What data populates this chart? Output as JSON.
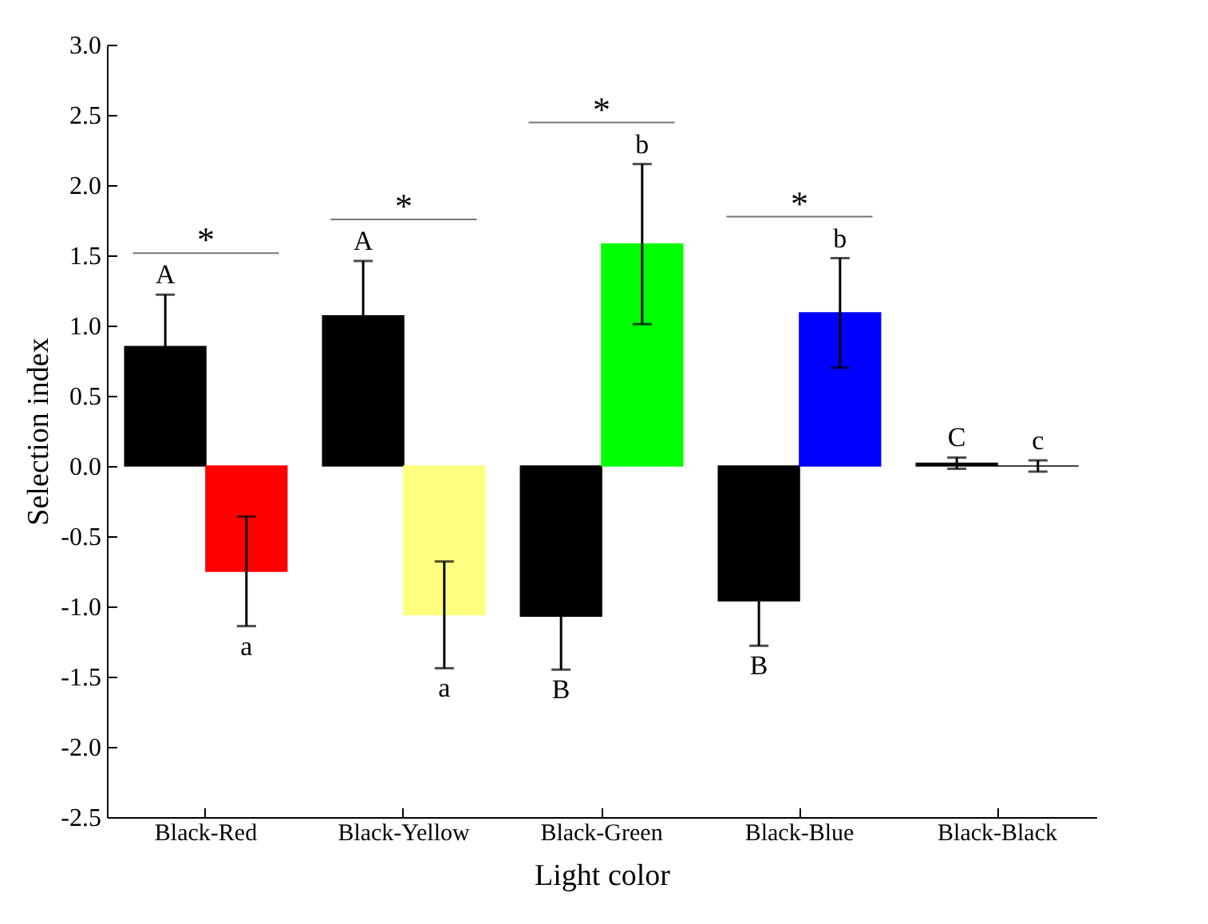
{
  "chart_data": {
    "type": "bar",
    "xlabel": "Light color",
    "ylabel": "Selection index",
    "categories": [
      "Black-Red",
      "Black-Yellow",
      "Black-Green",
      "Black-Blue",
      "Black-Black"
    ],
    "series": [
      {
        "color": "#000000",
        "values": [
          0.85,
          1.07,
          -1.07,
          -0.96,
          0.02
        ],
        "errors": [
          [
            0.85,
            1.22
          ],
          [
            1.07,
            1.46
          ],
          [
            -1.45,
            -1.07
          ],
          [
            -1.28,
            -0.96
          ],
          0.04
        ],
        "value_labels": [
          "A",
          "A",
          "B",
          "B",
          "C"
        ]
      },
      {
        "colors": [
          "#ff0000",
          "#ffff80",
          "#00ff00",
          "#0000ff",
          "#000000"
        ],
        "values": [
          -0.75,
          -1.06,
          1.58,
          1.09,
          0.0
        ],
        "errors": [
          0.39,
          0.38,
          0.57,
          0.39,
          0.04
        ],
        "value_labels": [
          "a",
          "a",
          "b",
          "b",
          "c"
        ]
      }
    ],
    "ylim": [
      -2.5,
      3.0
    ],
    "yticks": [
      {
        "value": -2.5,
        "label": "-2.5"
      },
      {
        "value": -2,
        "label": "-2.0"
      },
      {
        "value": -1.5,
        "label": "-1.5"
      },
      {
        "value": -1,
        "label": "-1.0"
      },
      {
        "value": -0.5,
        "label": "-0.5"
      },
      {
        "value": 0,
        "label": "0.0"
      },
      {
        "value": 0.5,
        "label": "0.5"
      },
      {
        "value": 1,
        "label": "1.0"
      },
      {
        "value": 1.5,
        "label": "1.5"
      },
      {
        "value": 2,
        "label": "2.0"
      },
      {
        "value": 2.5,
        "label": "2.5"
      },
      {
        "value": 3,
        "label": "3.0"
      }
    ],
    "annotations": [
      "*",
      "*",
      "*",
      "*"
    ],
    "grid": false
  }
}
